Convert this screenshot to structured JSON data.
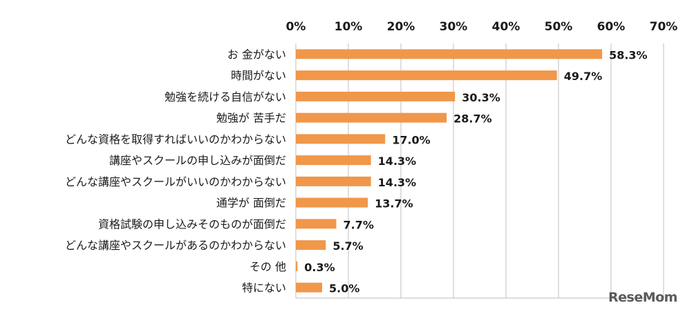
{
  "chart_data": {
    "type": "bar",
    "orientation": "horizontal",
    "categories": [
      "お 金がない",
      "時間がない",
      "勉強を続ける自信がない",
      "勉強が 苦手だ",
      "どんな資格を取得すればいいのかわからない",
      "講座やスクールの申し込みが面倒だ",
      "どんな講座やスクールがいいのかわからない",
      "通学が 面倒だ",
      "資格試験の申し込みそのものが面倒だ",
      "どんな講座やスクールがあるのかわからない",
      "その 他",
      "特にない"
    ],
    "values": [
      58.3,
      49.7,
      30.3,
      28.7,
      17.0,
      14.3,
      14.3,
      13.7,
      7.7,
      5.7,
      0.3,
      5.0
    ],
    "value_labels": [
      "58.3%",
      "49.7%",
      "30.3%",
      "28.7%",
      "17.0%",
      "14.3%",
      "14.3%",
      "13.7%",
      "7.7%",
      "5.7%",
      "0.3%",
      "5.0%"
    ],
    "xlim": [
      0,
      70
    ],
    "ticks": [
      0,
      10,
      20,
      30,
      40,
      50,
      60,
      70
    ],
    "tick_labels": [
      "0%",
      "10%",
      "20%",
      "30%",
      "40%",
      "50%",
      "60%",
      "70%"
    ],
    "x_axis_position": "top",
    "grid": true,
    "bar_color": "#F0974A",
    "grid_color": "#BFBFBF",
    "title": "",
    "xlabel": "",
    "ylabel": ""
  },
  "watermark": "ReseMom"
}
